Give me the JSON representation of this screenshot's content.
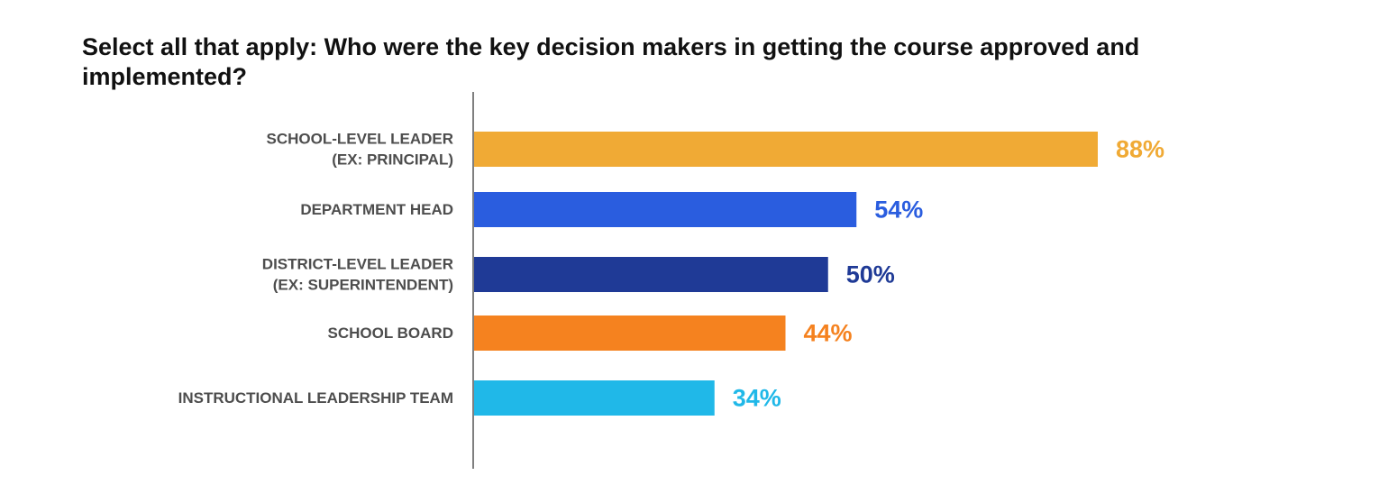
{
  "chart_data": {
    "type": "bar",
    "orientation": "horizontal",
    "title": "Select all that apply: Who were the key decision makers in getting the course approved and implemented?",
    "xlabel": "",
    "ylabel": "",
    "xlim": [
      0,
      100
    ],
    "grid": false,
    "legend": "none",
    "value_suffix": "%",
    "categories": [
      [
        "SCHOOL-LEVEL LEADER",
        "(EX: PRINCIPAL)"
      ],
      [
        "DEPARTMENT HEAD"
      ],
      [
        "DISTRICT-LEVEL LEADER",
        "(EX: SUPERINTENDENT)"
      ],
      [
        "SCHOOL BOARD"
      ],
      [
        "INSTRUCTIONAL LEADERSHIP TEAM"
      ]
    ],
    "values": [
      88,
      54,
      50,
      44,
      34
    ],
    "value_labels": [
      "88%",
      "54%",
      "50%",
      "44%",
      "34%"
    ],
    "colors": [
      "#f0aa35",
      "#2a5ddf",
      "#1f3a96",
      "#f5821f",
      "#20b8e8"
    ]
  }
}
